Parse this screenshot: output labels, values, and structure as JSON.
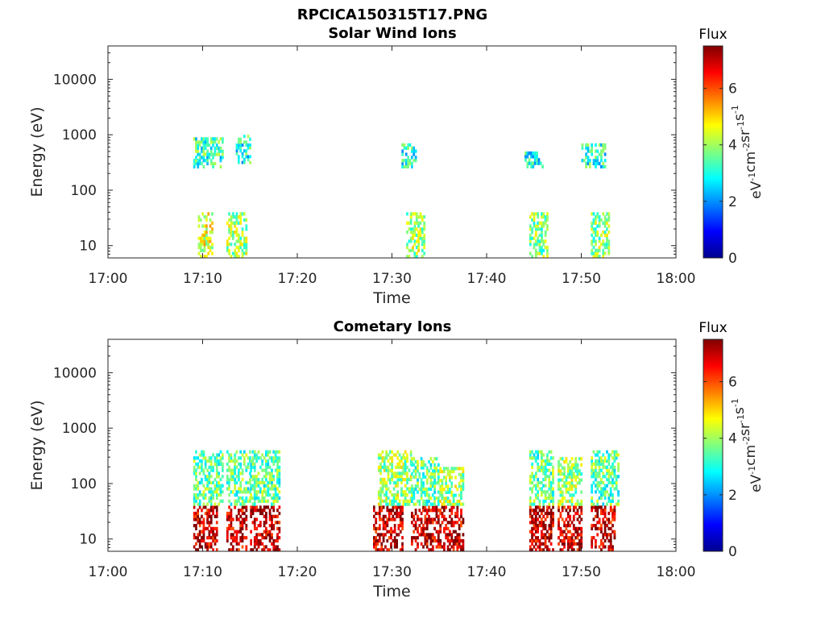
{
  "figure": {
    "title": "RPCICA150315T17.PNG",
    "colorbar_label": "Flux",
    "colorbar_unit_parts": [
      "eV",
      "-1",
      "cm",
      "-2",
      "sr",
      "-1",
      "s",
      "-1"
    ]
  },
  "chart_data": [
    {
      "type": "heatmap",
      "title": "Solar Wind Ions",
      "xlabel": "Time",
      "ylabel": "Energy (eV)",
      "x_ticks": [
        "17:00",
        "17:10",
        "17:20",
        "17:30",
        "17:40",
        "17:50",
        "18:00"
      ],
      "y_ticks": [
        "10",
        "100",
        "1000",
        "10000"
      ],
      "y_scale": "log",
      "ylim": [
        6,
        40000
      ],
      "xlim": [
        "17:00",
        "18:00"
      ],
      "colorbar_ticks": [
        "0",
        "2",
        "4",
        "6"
      ],
      "clim": [
        0,
        7.5
      ],
      "colormap": "jet",
      "regions": [
        {
          "start": "17:09.5",
          "end": "17:11.0",
          "low_eV": 6,
          "high_eV": 40,
          "flux": 4.5
        },
        {
          "start": "17:09.0",
          "end": "17:12.0",
          "low_eV": 250,
          "high_eV": 900,
          "flux": 3.2
        },
        {
          "start": "17:12.5",
          "end": "17:14.5",
          "low_eV": 6,
          "high_eV": 40,
          "flux": 4.0
        },
        {
          "start": "17:13.5",
          "end": "17:15.0",
          "low_eV": 300,
          "high_eV": 1000,
          "flux": 3.0
        },
        {
          "start": "17:31.5",
          "end": "17:33.5",
          "low_eV": 6,
          "high_eV": 40,
          "flux": 4.0
        },
        {
          "start": "17:31.0",
          "end": "17:32.5",
          "low_eV": 250,
          "high_eV": 700,
          "flux": 3.0
        },
        {
          "start": "17:44.5",
          "end": "17:46.5",
          "low_eV": 6,
          "high_eV": 40,
          "flux": 3.8
        },
        {
          "start": "17:44.0",
          "end": "17:46.0",
          "low_eV": 250,
          "high_eV": 500,
          "flux": 3.0
        },
        {
          "start": "17:51.0",
          "end": "17:53.0",
          "low_eV": 6,
          "high_eV": 40,
          "flux": 3.8
        },
        {
          "start": "17:50.0",
          "end": "17:52.5",
          "low_eV": 250,
          "high_eV": 700,
          "flux": 3.0
        }
      ]
    },
    {
      "type": "heatmap",
      "title": "Cometary Ions",
      "xlabel": "Time",
      "ylabel": "Energy (eV)",
      "x_ticks": [
        "17:00",
        "17:10",
        "17:20",
        "17:30",
        "17:40",
        "17:50",
        "18:00"
      ],
      "y_ticks": [
        "10",
        "100",
        "1000",
        "10000"
      ],
      "y_scale": "log",
      "ylim": [
        6,
        40000
      ],
      "xlim": [
        "17:00",
        "18:00"
      ],
      "colorbar_ticks": [
        "0",
        "2",
        "4",
        "6"
      ],
      "clim": [
        0,
        7.5
      ],
      "colormap": "jet",
      "regions": [
        {
          "start": "17:09.0",
          "end": "17:11.5",
          "low_eV": 6,
          "high_eV": 40,
          "flux": 7.0
        },
        {
          "start": "17:09.0",
          "end": "17:12.0",
          "low_eV": 40,
          "high_eV": 400,
          "flux": 3.5
        },
        {
          "start": "17:12.5",
          "end": "17:14.5",
          "low_eV": 6,
          "high_eV": 40,
          "flux": 7.0
        },
        {
          "start": "17:12.5",
          "end": "17:15.0",
          "low_eV": 40,
          "high_eV": 400,
          "flux": 3.5
        },
        {
          "start": "17:15.0",
          "end": "17:18.0",
          "low_eV": 6,
          "high_eV": 40,
          "flux": 7.0
        },
        {
          "start": "17:15.0",
          "end": "17:18.0",
          "low_eV": 40,
          "high_eV": 400,
          "flux": 3.5
        },
        {
          "start": "17:28.0",
          "end": "17:31.0",
          "low_eV": 6,
          "high_eV": 40,
          "flux": 7.0
        },
        {
          "start": "17:28.5",
          "end": "17:32.0",
          "low_eV": 40,
          "high_eV": 400,
          "flux": 4.0
        },
        {
          "start": "17:32.0",
          "end": "17:35.0",
          "low_eV": 6,
          "high_eV": 40,
          "flux": 7.0
        },
        {
          "start": "17:32.0",
          "end": "17:35.0",
          "low_eV": 40,
          "high_eV": 300,
          "flux": 3.5
        },
        {
          "start": "17:35.0",
          "end": "17:37.5",
          "low_eV": 6,
          "high_eV": 40,
          "flux": 7.0
        },
        {
          "start": "17:35.0",
          "end": "17:37.5",
          "low_eV": 40,
          "high_eV": 200,
          "flux": 4.0
        },
        {
          "start": "17:44.5",
          "end": "17:47.0",
          "low_eV": 6,
          "high_eV": 40,
          "flux": 7.0
        },
        {
          "start": "17:44.5",
          "end": "17:47.0",
          "low_eV": 40,
          "high_eV": 400,
          "flux": 3.5
        },
        {
          "start": "17:47.5",
          "end": "17:50.0",
          "low_eV": 6,
          "high_eV": 40,
          "flux": 7.0
        },
        {
          "start": "17:47.5",
          "end": "17:50.0",
          "low_eV": 40,
          "high_eV": 300,
          "flux": 4.0
        },
        {
          "start": "17:51.0",
          "end": "17:53.5",
          "low_eV": 6,
          "high_eV": 40,
          "flux": 7.0
        },
        {
          "start": "17:51.0",
          "end": "17:54.0",
          "low_eV": 40,
          "high_eV": 400,
          "flux": 3.5
        }
      ]
    }
  ]
}
